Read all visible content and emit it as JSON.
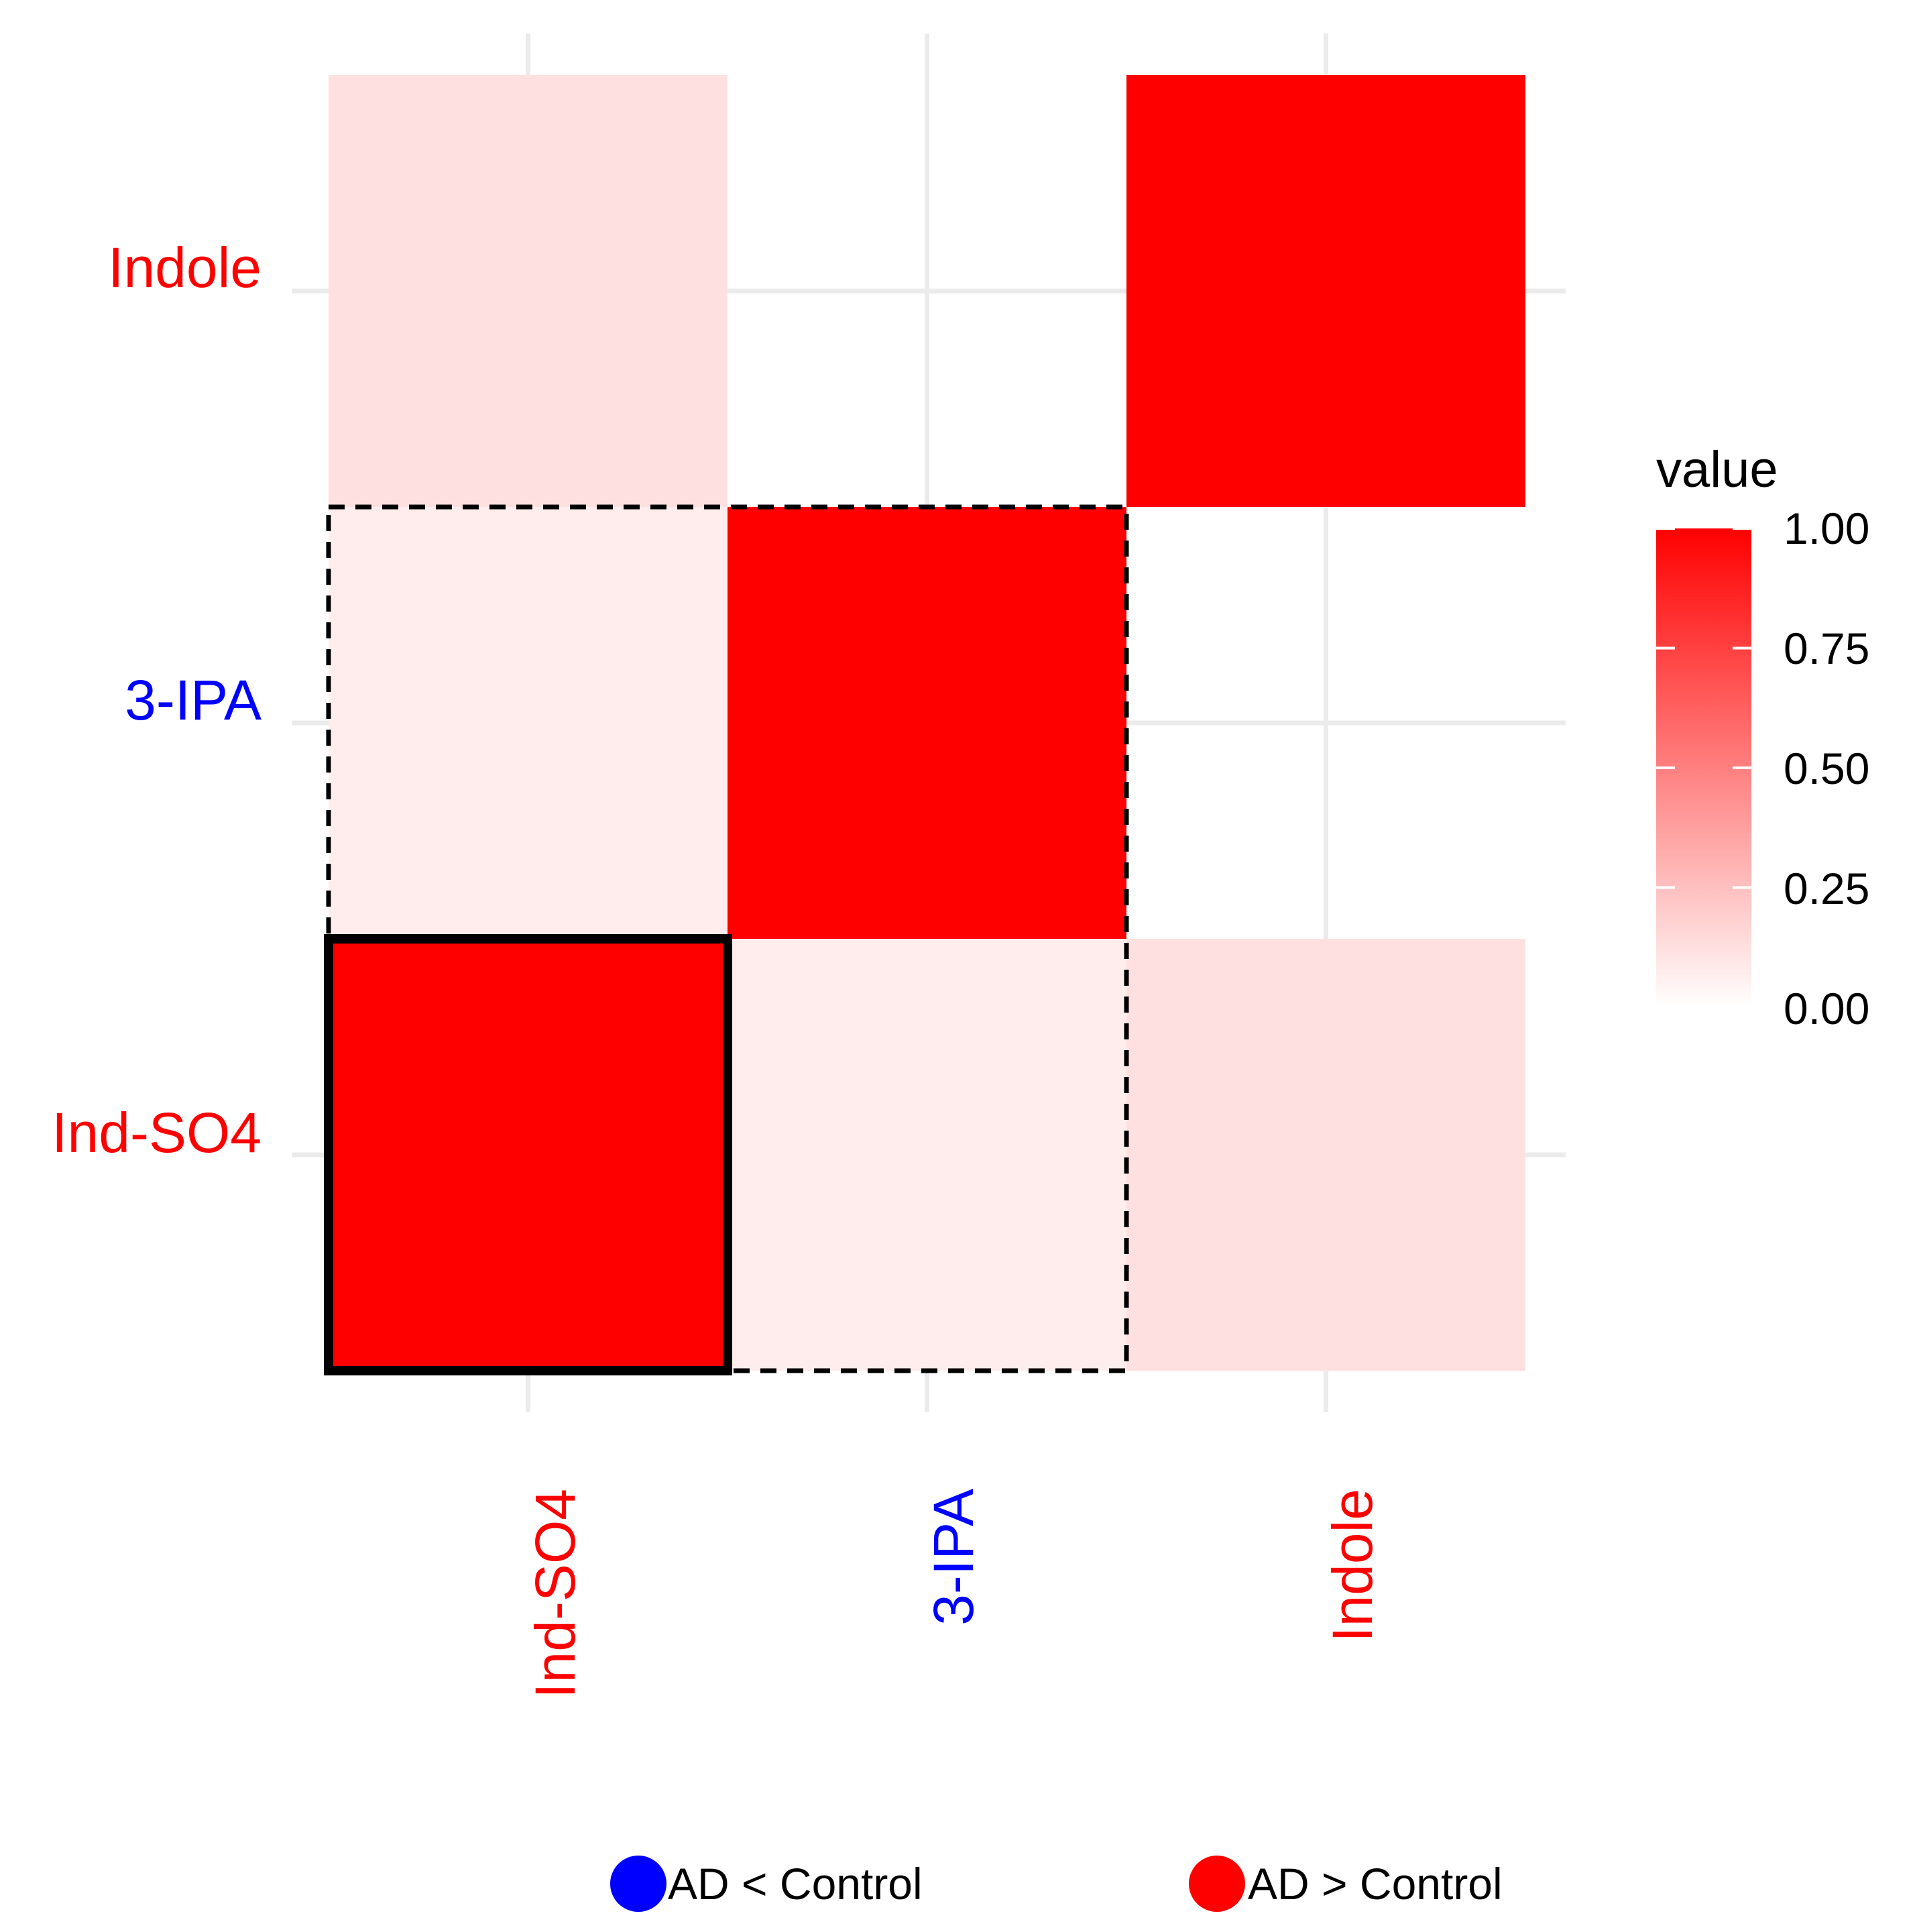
{
  "chart_data": {
    "type": "heatmap",
    "x_categories": [
      "Ind-SO4",
      "3-IPA",
      "Indole"
    ],
    "y_categories": [
      "Ind-SO4",
      "3-IPA",
      "Indole"
    ],
    "x_label_colors": [
      "#ff0000",
      "#0000ff",
      "#ff0000"
    ],
    "y_label_colors": [
      "#ff0000",
      "#0000ff",
      "#ff0000"
    ],
    "cells": [
      {
        "x": "Ind-SO4",
        "y": "Ind-SO4",
        "value": 1.0
      },
      {
        "x": "3-IPA",
        "y": "Ind-SO4",
        "value": 0.07
      },
      {
        "x": "Indole",
        "y": "Ind-SO4",
        "value": 0.12
      },
      {
        "x": "Ind-SO4",
        "y": "3-IPA",
        "value": 0.07
      },
      {
        "x": "3-IPA",
        "y": "3-IPA",
        "value": 1.0
      },
      {
        "x": "Ind-SO4",
        "y": "Indole",
        "value": 0.12
      },
      {
        "x": "Indole",
        "y": "Indole",
        "value": 1.0
      }
    ],
    "cluster_outlines": [
      {
        "x": [
          "Ind-SO4",
          "Ind-SO4"
        ],
        "y": [
          "Ind-SO4",
          "Ind-SO4"
        ],
        "style": "solid"
      },
      {
        "x": [
          "Ind-SO4",
          "3-IPA"
        ],
        "y": [
          "Ind-SO4",
          "3-IPA"
        ],
        "style": "dashed"
      }
    ],
    "legend": {
      "title": "value",
      "range": [
        0.0,
        1.0
      ],
      "ticks": [
        "1.00",
        "0.75",
        "0.50",
        "0.25",
        "0.00"
      ],
      "low_color": "#ffffff",
      "high_color": "#ff0000"
    },
    "group_legend": [
      {
        "label": "AD < Control",
        "color": "#0000ff"
      },
      {
        "label": "AD > Control",
        "color": "#ff0000"
      }
    ]
  }
}
